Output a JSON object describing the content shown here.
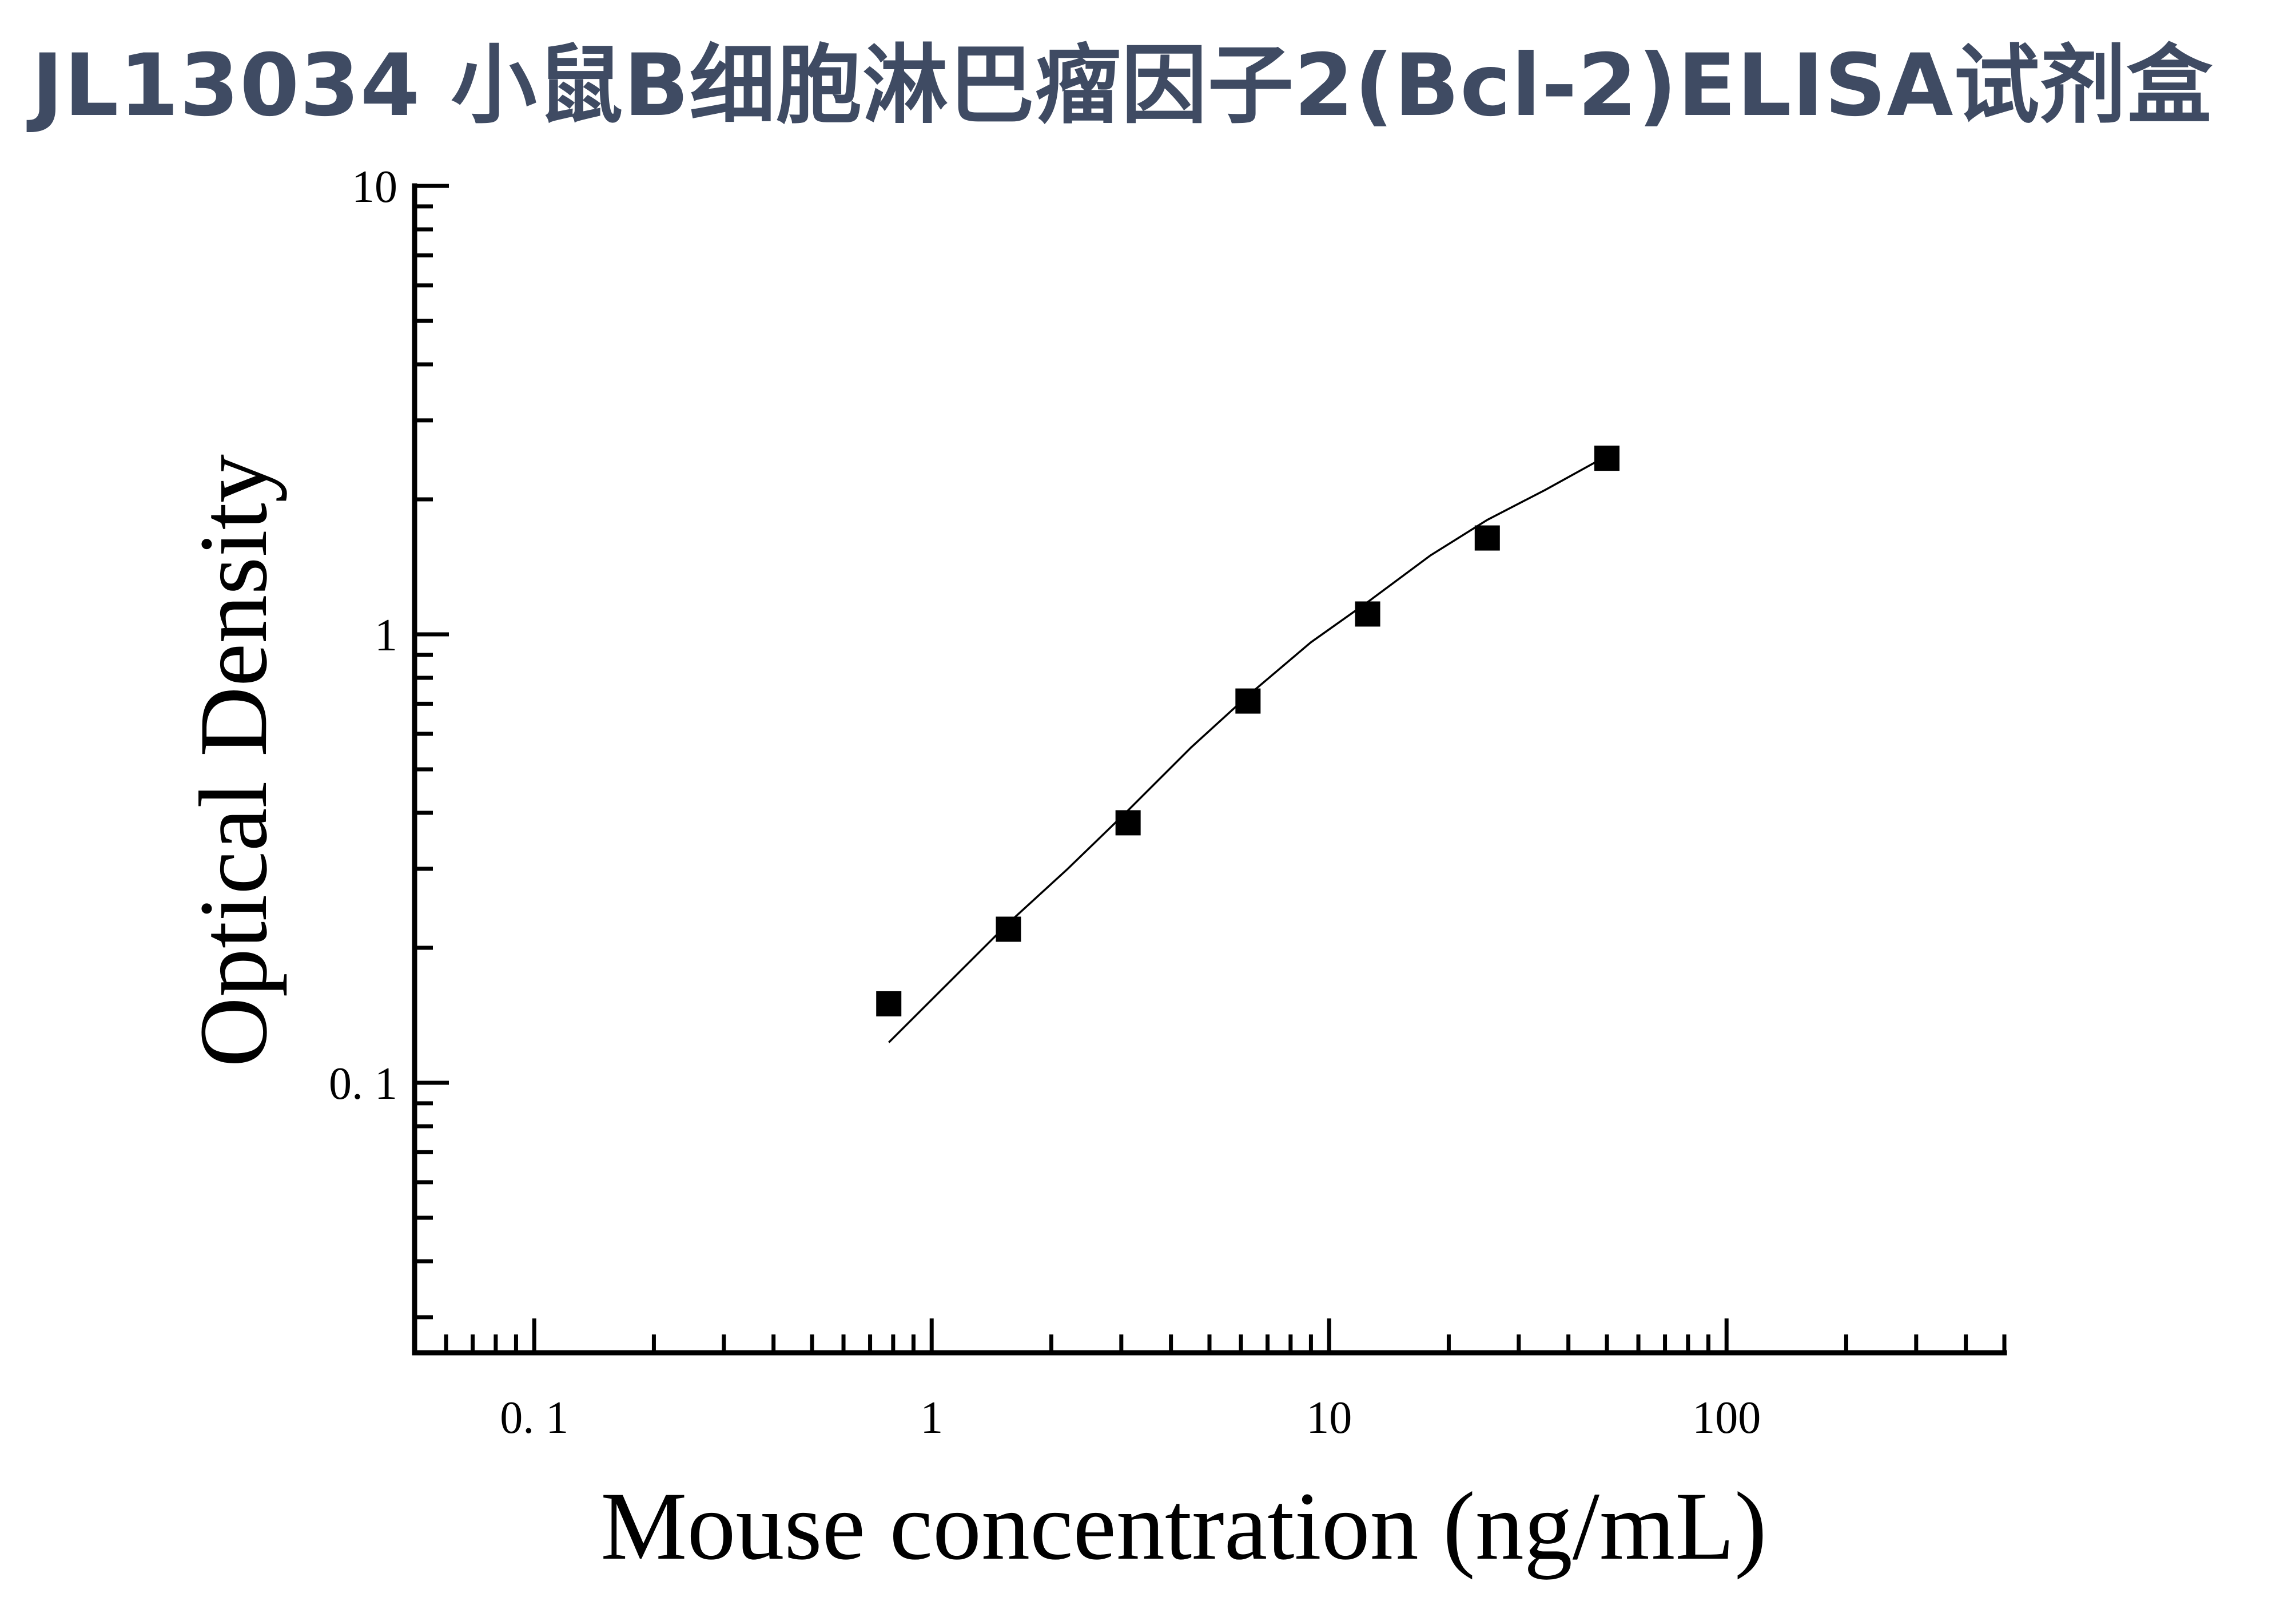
{
  "title": "JL13034 小鼠B细胞淋巴瘤因子2(Bcl-2)ELISA试剂盒",
  "chart_data": {
    "type": "scatter",
    "xlabel": "Mouse concentration (ng/mL)",
    "ylabel": "Optical Density",
    "xscale": "log",
    "yscale": "log",
    "xlim": [
      0.05,
      500
    ],
    "ylim": [
      0.025,
      10
    ],
    "x_tick_labels": [
      "0. 1",
      "1",
      "10",
      "100"
    ],
    "x_tick_values": [
      0.1,
      1,
      10,
      100
    ],
    "y_tick_labels": [
      "0. 1",
      "1",
      "10"
    ],
    "y_tick_values": [
      0.1,
      1,
      10
    ],
    "grid": false,
    "series": [
      {
        "marker": "square",
        "color": "#000000",
        "x": [
          0.78,
          1.56,
          3.12,
          6.25,
          12.5,
          25,
          50
        ],
        "y": [
          0.15,
          0.22,
          0.38,
          0.71,
          1.11,
          1.64,
          2.47
        ]
      }
    ],
    "fit_curve": {
      "color": "#000000",
      "x": [
        0.78,
        1.2,
        1.56,
        2.2,
        3.12,
        4.5,
        6.25,
        9.0,
        12.5,
        18,
        25,
        35,
        50
      ],
      "y": [
        0.123,
        0.18,
        0.227,
        0.3,
        0.405,
        0.56,
        0.73,
        0.96,
        1.18,
        1.5,
        1.8,
        2.1,
        2.5
      ]
    }
  }
}
